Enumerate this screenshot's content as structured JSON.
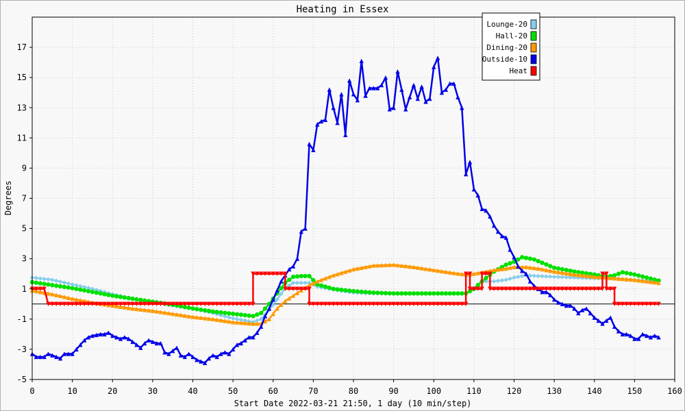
{
  "chart_data": {
    "type": "line",
    "title": "Heating in Essex",
    "xlabel": "Start Date 2022-03-21 21:50, 1 day (10 min/step)",
    "ylabel": "Degrees",
    "xlim": [
      0,
      160
    ],
    "ylim": [
      -5,
      19
    ],
    "x_ticks": [
      0,
      10,
      20,
      30,
      40,
      50,
      60,
      70,
      80,
      90,
      100,
      110,
      120,
      130,
      140,
      150,
      160
    ],
    "y_ticks": [
      -5,
      -3,
      -1,
      1,
      3,
      5,
      7,
      9,
      11,
      13,
      15,
      17
    ],
    "grid": true,
    "zero_line": true,
    "legend_position": "top-right",
    "series": [
      {
        "name": "Lounge-20",
        "color": "#87ceeb",
        "marker": "diamond",
        "points": [
          [
            0,
            1.75
          ],
          [
            5,
            1.6
          ],
          [
            10,
            1.3
          ],
          [
            15,
            1.0
          ],
          [
            20,
            0.65
          ],
          [
            25,
            0.35
          ],
          [
            30,
            0.1
          ],
          [
            35,
            -0.1
          ],
          [
            40,
            -0.3
          ],
          [
            45,
            -0.6
          ],
          [
            50,
            -0.95
          ],
          [
            55,
            -1.2
          ],
          [
            57,
            -1.0
          ],
          [
            59,
            -0.4
          ],
          [
            61,
            0.3
          ],
          [
            63,
            1.05
          ],
          [
            65,
            1.4
          ],
          [
            67,
            1.4
          ],
          [
            69,
            1.4
          ],
          [
            71,
            1.15
          ],
          [
            75,
            0.95
          ],
          [
            80,
            0.75
          ],
          [
            85,
            0.7
          ],
          [
            90,
            0.7
          ],
          [
            95,
            0.7
          ],
          [
            100,
            0.7
          ],
          [
            105,
            0.7
          ],
          [
            108,
            0.7
          ],
          [
            110,
            1.05
          ],
          [
            112,
            1.5
          ],
          [
            115,
            1.5
          ],
          [
            118,
            1.6
          ],
          [
            120,
            1.75
          ],
          [
            123,
            1.9
          ],
          [
            126,
            1.85
          ],
          [
            130,
            1.8
          ],
          [
            135,
            1.75
          ],
          [
            140,
            1.7
          ],
          [
            143,
            1.7
          ],
          [
            145,
            1.7
          ],
          [
            150,
            1.6
          ],
          [
            156,
            1.5
          ]
        ]
      },
      {
        "name": "Hall-20",
        "color": "#00e000",
        "marker": "circle",
        "points": [
          [
            0,
            1.45
          ],
          [
            5,
            1.25
          ],
          [
            10,
            1.05
          ],
          [
            15,
            0.8
          ],
          [
            20,
            0.55
          ],
          [
            25,
            0.35
          ],
          [
            30,
            0.15
          ],
          [
            35,
            -0.05
          ],
          [
            40,
            -0.3
          ],
          [
            45,
            -0.5
          ],
          [
            50,
            -0.65
          ],
          [
            55,
            -0.8
          ],
          [
            57,
            -0.6
          ],
          [
            59,
            0.0
          ],
          [
            61,
            0.7
          ],
          [
            63,
            1.4
          ],
          [
            65,
            1.8
          ],
          [
            67,
            1.85
          ],
          [
            69,
            1.85
          ],
          [
            71,
            1.3
          ],
          [
            75,
            1.0
          ],
          [
            80,
            0.85
          ],
          [
            85,
            0.75
          ],
          [
            90,
            0.7
          ],
          [
            95,
            0.7
          ],
          [
            100,
            0.7
          ],
          [
            105,
            0.7
          ],
          [
            108,
            0.7
          ],
          [
            110,
            1.0
          ],
          [
            112,
            1.5
          ],
          [
            115,
            2.15
          ],
          [
            118,
            2.6
          ],
          [
            120,
            2.8
          ],
          [
            122,
            3.1
          ],
          [
            125,
            2.95
          ],
          [
            130,
            2.4
          ],
          [
            135,
            2.15
          ],
          [
            140,
            1.95
          ],
          [
            143,
            1.8
          ],
          [
            145,
            1.9
          ],
          [
            147,
            2.1
          ],
          [
            150,
            1.95
          ],
          [
            156,
            1.55
          ]
        ]
      },
      {
        "name": "Dining-20",
        "color": "#ff9900",
        "marker": "triangle",
        "points": [
          [
            0,
            0.9
          ],
          [
            5,
            0.65
          ],
          [
            10,
            0.35
          ],
          [
            15,
            0.1
          ],
          [
            20,
            -0.1
          ],
          [
            25,
            -0.3
          ],
          [
            30,
            -0.45
          ],
          [
            35,
            -0.65
          ],
          [
            40,
            -0.85
          ],
          [
            45,
            -1.0
          ],
          [
            50,
            -1.2
          ],
          [
            55,
            -1.3
          ],
          [
            57,
            -1.3
          ],
          [
            59,
            -1.0
          ],
          [
            61,
            -0.3
          ],
          [
            63,
            0.2
          ],
          [
            65,
            0.55
          ],
          [
            67,
            0.9
          ],
          [
            69,
            1.25
          ],
          [
            72,
            1.6
          ],
          [
            75,
            1.9
          ],
          [
            80,
            2.3
          ],
          [
            85,
            2.55
          ],
          [
            90,
            2.6
          ],
          [
            95,
            2.45
          ],
          [
            100,
            2.25
          ],
          [
            105,
            2.05
          ],
          [
            108,
            1.95
          ],
          [
            110,
            2.0
          ],
          [
            112,
            2.1
          ],
          [
            115,
            2.25
          ],
          [
            118,
            2.35
          ],
          [
            120,
            2.45
          ],
          [
            123,
            2.45
          ],
          [
            126,
            2.35
          ],
          [
            130,
            2.15
          ],
          [
            135,
            1.95
          ],
          [
            140,
            1.8
          ],
          [
            143,
            1.75
          ],
          [
            145,
            1.7
          ],
          [
            150,
            1.6
          ],
          [
            156,
            1.4
          ]
        ]
      },
      {
        "name": "Outside-10",
        "color": "#0000e8",
        "marker": "triangle",
        "points": [
          [
            0,
            -3.3
          ],
          [
            1,
            -3.5
          ],
          [
            3,
            -3.5
          ],
          [
            4,
            -3.3
          ],
          [
            5,
            -3.4
          ],
          [
            6,
            -3.5
          ],
          [
            7,
            -3.6
          ],
          [
            8,
            -3.3
          ],
          [
            10,
            -3.3
          ],
          [
            11,
            -3.0
          ],
          [
            12,
            -2.7
          ],
          [
            13,
            -2.4
          ],
          [
            14,
            -2.2
          ],
          [
            15,
            -2.1
          ],
          [
            16,
            -2.05
          ],
          [
            17,
            -2.0
          ],
          [
            18,
            -2.0
          ],
          [
            19,
            -1.9
          ],
          [
            20,
            -2.1
          ],
          [
            21,
            -2.2
          ],
          [
            22,
            -2.3
          ],
          [
            23,
            -2.2
          ],
          [
            24,
            -2.3
          ],
          [
            25,
            -2.5
          ],
          [
            26,
            -2.7
          ],
          [
            27,
            -2.9
          ],
          [
            28,
            -2.6
          ],
          [
            29,
            -2.4
          ],
          [
            30,
            -2.5
          ],
          [
            31,
            -2.6
          ],
          [
            32,
            -2.6
          ],
          [
            33,
            -3.2
          ],
          [
            34,
            -3.3
          ],
          [
            35,
            -3.1
          ],
          [
            36,
            -2.9
          ],
          [
            37,
            -3.4
          ],
          [
            38,
            -3.5
          ],
          [
            39,
            -3.3
          ],
          [
            40,
            -3.5
          ],
          [
            41,
            -3.7
          ],
          [
            42,
            -3.8
          ],
          [
            43,
            -3.9
          ],
          [
            44,
            -3.6
          ],
          [
            45,
            -3.4
          ],
          [
            46,
            -3.5
          ],
          [
            47,
            -3.3
          ],
          [
            48,
            -3.2
          ],
          [
            49,
            -3.3
          ],
          [
            50,
            -3.0
          ],
          [
            51,
            -2.7
          ],
          [
            52,
            -2.6
          ],
          [
            53,
            -2.4
          ],
          [
            54,
            -2.2
          ],
          [
            55,
            -2.2
          ],
          [
            56,
            -1.9
          ],
          [
            57,
            -1.5
          ],
          [
            58,
            -0.8
          ],
          [
            59,
            -0.3
          ],
          [
            60,
            0.3
          ],
          [
            61,
            0.9
          ],
          [
            62,
            1.5
          ],
          [
            63,
            1.9
          ],
          [
            64,
            2.3
          ],
          [
            65,
            2.5
          ],
          [
            66,
            3.0
          ],
          [
            67,
            4.8
          ],
          [
            68,
            5.0
          ],
          [
            69,
            10.6
          ],
          [
            70,
            10.2
          ],
          [
            71,
            11.9
          ],
          [
            72,
            12.1
          ],
          [
            73,
            12.2
          ],
          [
            74,
            14.2
          ],
          [
            75,
            13.0
          ],
          [
            76,
            12.0
          ],
          [
            77,
            13.9
          ],
          [
            78,
            11.2
          ],
          [
            79,
            14.8
          ],
          [
            80,
            13.9
          ],
          [
            81,
            13.5
          ],
          [
            82,
            16.1
          ],
          [
            83,
            13.8
          ],
          [
            84,
            14.3
          ],
          [
            85,
            14.3
          ],
          [
            86,
            14.3
          ],
          [
            87,
            14.5
          ],
          [
            88,
            15.0
          ],
          [
            89,
            12.9
          ],
          [
            90,
            13.0
          ],
          [
            91,
            15.4
          ],
          [
            92,
            14.2
          ],
          [
            93,
            12.9
          ],
          [
            94,
            13.7
          ],
          [
            95,
            14.5
          ],
          [
            96,
            13.6
          ],
          [
            97,
            14.4
          ],
          [
            98,
            13.4
          ],
          [
            99,
            13.6
          ],
          [
            100,
            15.7
          ],
          [
            101,
            16.3
          ],
          [
            102,
            14.0
          ],
          [
            103,
            14.2
          ],
          [
            104,
            14.6
          ],
          [
            105,
            14.6
          ],
          [
            106,
            13.7
          ],
          [
            107,
            13.0
          ],
          [
            108,
            8.6
          ],
          [
            109,
            9.4
          ],
          [
            110,
            7.6
          ],
          [
            111,
            7.2
          ],
          [
            112,
            6.3
          ],
          [
            113,
            6.2
          ],
          [
            114,
            5.8
          ],
          [
            115,
            5.2
          ],
          [
            116,
            4.8
          ],
          [
            117,
            4.5
          ],
          [
            118,
            4.4
          ],
          [
            119,
            3.6
          ],
          [
            120,
            3.1
          ],
          [
            121,
            2.5
          ],
          [
            122,
            2.2
          ],
          [
            123,
            2.0
          ],
          [
            124,
            1.5
          ],
          [
            125,
            1.2
          ],
          [
            126,
            1.0
          ],
          [
            127,
            0.8
          ],
          [
            128,
            0.8
          ],
          [
            129,
            0.6
          ],
          [
            130,
            0.3
          ],
          [
            131,
            0.1
          ],
          [
            132,
            0.0
          ],
          [
            133,
            -0.1
          ],
          [
            134,
            -0.1
          ],
          [
            135,
            -0.3
          ],
          [
            136,
            -0.6
          ],
          [
            137,
            -0.4
          ],
          [
            138,
            -0.3
          ],
          [
            139,
            -0.6
          ],
          [
            140,
            -0.9
          ],
          [
            141,
            -1.1
          ],
          [
            142,
            -1.3
          ],
          [
            143,
            -1.1
          ],
          [
            144,
            -0.9
          ],
          [
            145,
            -1.5
          ],
          [
            146,
            -1.8
          ],
          [
            147,
            -2.0
          ],
          [
            148,
            -2.0
          ],
          [
            149,
            -2.1
          ],
          [
            150,
            -2.3
          ],
          [
            151,
            -2.3
          ],
          [
            152,
            -2.0
          ],
          [
            153,
            -2.1
          ],
          [
            154,
            -2.2
          ],
          [
            155,
            -2.1
          ],
          [
            156,
            -2.2
          ]
        ]
      },
      {
        "name": "Heat",
        "color": "#ff0000",
        "marker": "triangle-down",
        "points": [
          [
            0,
            1.0
          ],
          [
            3,
            1.0
          ],
          [
            4,
            0.0
          ],
          [
            55,
            0.0
          ],
          [
            55,
            2.0
          ],
          [
            63,
            2.0
          ],
          [
            63,
            1.0
          ],
          [
            69,
            1.0
          ],
          [
            69,
            0.0
          ],
          [
            108,
            0.0
          ],
          [
            108,
            2.0
          ],
          [
            109,
            2.0
          ],
          [
            109,
            1.0
          ],
          [
            112,
            1.0
          ],
          [
            112,
            2.0
          ],
          [
            114,
            2.0
          ],
          [
            114,
            1.0
          ],
          [
            142,
            1.0
          ],
          [
            142,
            2.0
          ],
          [
            143,
            2.0
          ],
          [
            143,
            1.0
          ],
          [
            145,
            1.0
          ],
          [
            145,
            0.0
          ],
          [
            156,
            0.0
          ]
        ]
      }
    ]
  }
}
